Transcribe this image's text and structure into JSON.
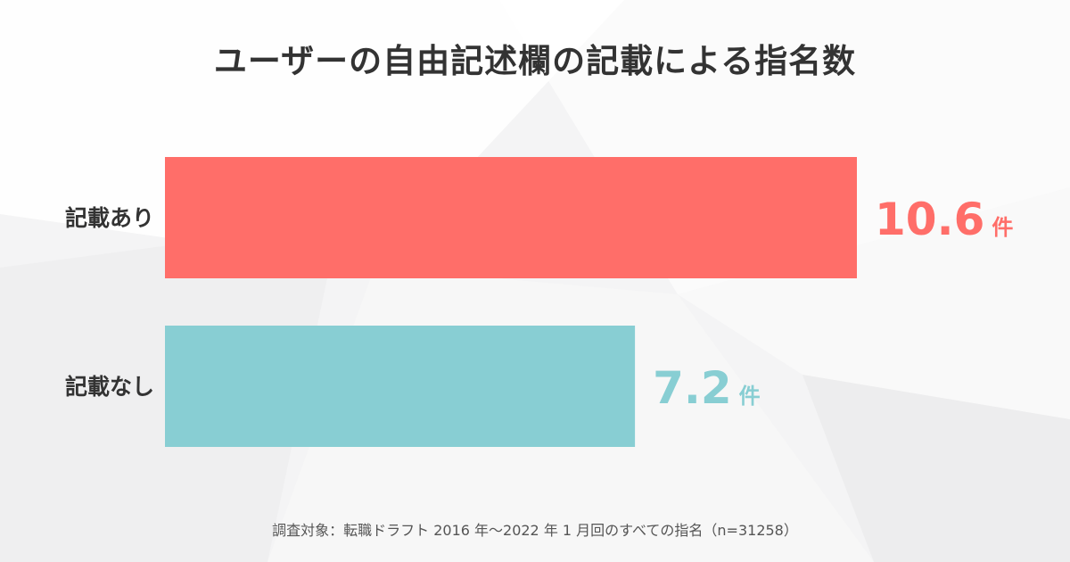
{
  "title": "ユーザーの自由記述欄の記載による指名数",
  "note": "調査対象：転職ドラフト 2016 年〜2022 年 1 月回のすべての指名（n=31258）",
  "chart_data": {
    "type": "bar",
    "orientation": "horizontal",
    "title": "ユーザーの自由記述欄の記載による指名数",
    "categories": [
      "記載あり",
      "記載なし"
    ],
    "values": [
      10.6,
      7.2
    ],
    "value_labels": [
      "10.6",
      "7.2"
    ],
    "unit": "件",
    "colors": [
      "#ff6e69",
      "#88ced3"
    ],
    "xlim": [
      0,
      10.6
    ],
    "grid": false,
    "legend": "none"
  }
}
